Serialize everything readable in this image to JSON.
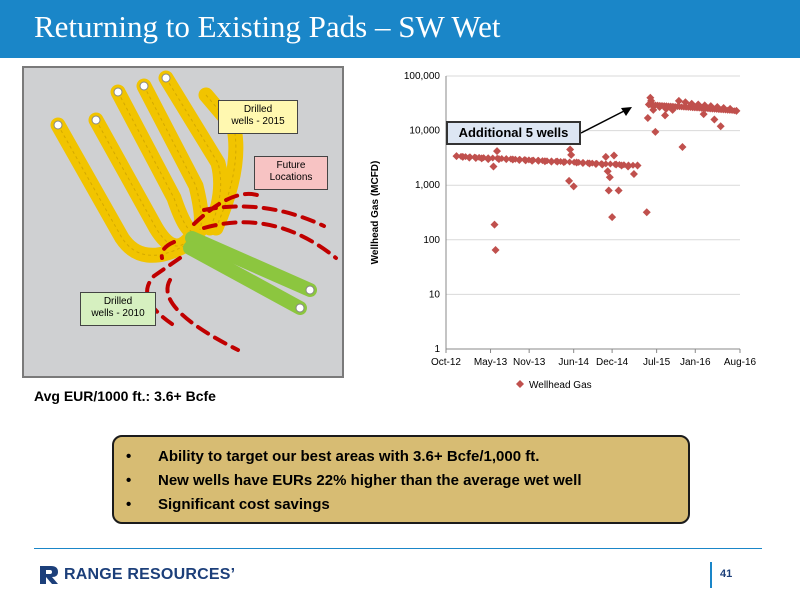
{
  "title": "Returning to Existing Pads – SW Wet",
  "map": {
    "callout_2015_line1": "Drilled",
    "callout_2015_line2": "wells - 2015",
    "callout_future_line1": "Future",
    "callout_future_line2": "Locations",
    "callout_2010_line1": "Drilled",
    "callout_2010_line2": "wells - 2010",
    "colors": {
      "wells_2015": "#f1c400",
      "wells_2010": "#8cc63f",
      "future": "#c00000"
    }
  },
  "eur_label": "Avg EUR/1000 ft.: 3.6+ Bcfe",
  "annotation": "Additional 5 wells",
  "chart_data": {
    "type": "scatter",
    "ylabel": "Wellhead Gas (MCFD)",
    "y_scale": "log",
    "ylim": [
      1,
      100000
    ],
    "y_ticks": [
      "100,000",
      "10,000",
      "1,000",
      "100",
      "10",
      "1"
    ],
    "x_ticks": [
      "Oct-12",
      "May-13",
      "Nov-13",
      "Jun-14",
      "Dec-14",
      "Jul-15",
      "Jan-16",
      "Aug-16"
    ],
    "grid": "horizontal",
    "legend": "bottom",
    "color": "#c0504d",
    "series": [
      {
        "name": "Wellhead Gas",
        "points": [
          [
            "2012-11-20",
            3400
          ],
          [
            "2012-12-20",
            3300
          ],
          [
            "2013-01-20",
            3200
          ],
          [
            "2013-02-20",
            3150
          ],
          [
            "2013-03-20",
            3100
          ],
          [
            "2013-04-20",
            3000
          ],
          [
            "2013-05-15",
            2200
          ],
          [
            "2013-05-20",
            190
          ],
          [
            "2013-05-25",
            65
          ],
          [
            "2013-06-01",
            4200
          ],
          [
            "2013-06-10",
            3000
          ],
          [
            "2013-07-15",
            3000
          ],
          [
            "2013-08-15",
            2950
          ],
          [
            "2013-09-15",
            2900
          ],
          [
            "2013-10-15",
            2850
          ],
          [
            "2013-11-15",
            2800
          ],
          [
            "2013-12-15",
            2800
          ],
          [
            "2014-01-15",
            2750
          ],
          [
            "2014-02-15",
            2700
          ],
          [
            "2014-03-15",
            2700
          ],
          [
            "2014-04-15",
            2650
          ],
          [
            "2014-05-10",
            1200
          ],
          [
            "2014-05-15",
            4500
          ],
          [
            "2014-05-20",
            3600
          ],
          [
            "2014-06-01",
            950
          ],
          [
            "2014-06-15",
            2600
          ],
          [
            "2014-07-15",
            2550
          ],
          [
            "2014-08-15",
            2500
          ],
          [
            "2014-09-15",
            2450
          ],
          [
            "2014-10-15",
            2400
          ],
          [
            "2014-11-01",
            3300
          ],
          [
            "2014-11-10",
            1800
          ],
          [
            "2014-11-15",
            800
          ],
          [
            "2014-11-20",
            1400
          ],
          [
            "2014-12-01",
            260
          ],
          [
            "2014-12-10",
            3500
          ],
          [
            "2014-12-20",
            2400
          ],
          [
            "2015-01-01",
            800
          ],
          [
            "2015-01-15",
            2300
          ],
          [
            "2015-02-15",
            2200
          ],
          [
            "2015-03-15",
            1600
          ],
          [
            "2015-04-01",
            2300
          ],
          [
            "2015-05-15",
            320
          ],
          [
            "2015-05-20",
            17000
          ],
          [
            "2015-05-25",
            30000
          ],
          [
            "2015-06-01",
            40000
          ],
          [
            "2015-06-05",
            35000
          ],
          [
            "2015-06-15",
            24000
          ],
          [
            "2015-06-25",
            9500
          ],
          [
            "2015-07-15",
            27000
          ],
          [
            "2015-08-10",
            19000
          ],
          [
            "2015-08-15",
            25000
          ],
          [
            "2015-09-15",
            24000
          ],
          [
            "2015-10-15",
            35000
          ],
          [
            "2015-11-01",
            5000
          ],
          [
            "2015-11-15",
            33000
          ],
          [
            "2015-12-15",
            31000
          ],
          [
            "2016-01-15",
            30000
          ],
          [
            "2016-02-10",
            20000
          ],
          [
            "2016-02-15",
            29000
          ],
          [
            "2016-03-15",
            28000
          ],
          [
            "2016-04-01",
            16000
          ],
          [
            "2016-04-15",
            27000
          ],
          [
            "2016-05-01",
            12000
          ],
          [
            "2016-05-15",
            26000
          ],
          [
            "2016-06-15",
            25000
          ],
          [
            "2016-07-15",
            23000
          ]
        ]
      }
    ]
  },
  "bullets": [
    "Ability to target our best areas with 3.6+ Bcfe/1,000 ft.",
    "New wells have EURs 22% higher than the average wet well",
    "Significant cost savings"
  ],
  "bullet_char": "•",
  "footer": {
    "logo_text": "RANGE RESOURCES’",
    "logo_icon": "range-r-logo-icon",
    "page_number": "41"
  }
}
